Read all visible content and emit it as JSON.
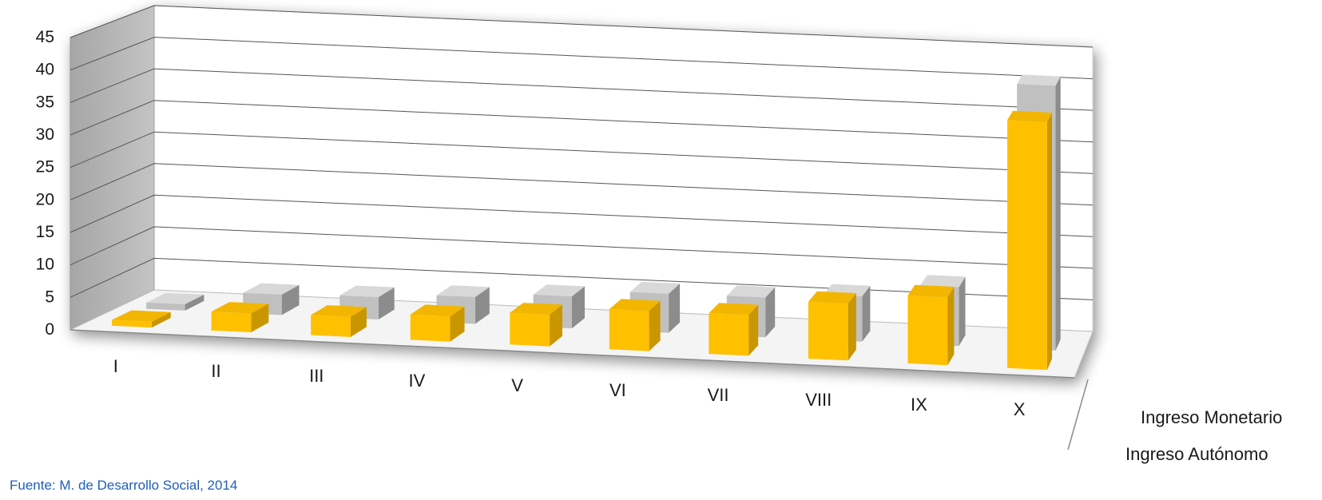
{
  "source": "Fuente: M. de Desarrollo Social, 2014",
  "chart_data": {
    "type": "bar",
    "projection": "3d-clustered-depth",
    "categories": [
      "I",
      "II",
      "III",
      "IV",
      "V",
      "VI",
      "VII",
      "VIII",
      "IX",
      "X"
    ],
    "series": [
      {
        "name": "Ingreso Autónomo",
        "color": "#FFC000",
        "values": [
          0.9,
          2.9,
          3.1,
          3.9,
          4.9,
          6.2,
          6.3,
          8.8,
          10.5,
          38.3
        ]
      },
      {
        "name": "Ingreso Monetario",
        "color": "#BFBFBF",
        "values": [
          1.0,
          3.2,
          3.5,
          4.2,
          5.0,
          6.1,
          6.2,
          7.1,
          9.2,
          41.4
        ]
      }
    ],
    "y_ticks": [
      "0",
      "5",
      "10",
      "15",
      "20",
      "25",
      "30",
      "35",
      "40",
      "45"
    ],
    "ylim": [
      0,
      45
    ],
    "grid": true,
    "legend_placement": "right",
    "title": "",
    "xlabel": "",
    "ylabel": ""
  }
}
